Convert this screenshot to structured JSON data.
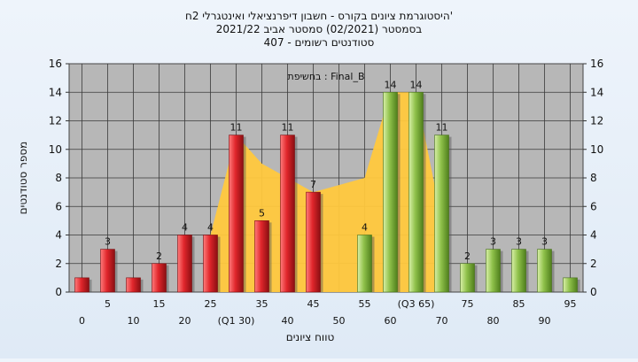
{
  "chart_data": {
    "type": "bar",
    "title_lines": [
      "היסטוגרמת ציונים בקורס - חשבון דיפרנציאלי ואינטגרלי 2ח'",
      "בסמסטר (02/2021) סמסטר אביב 2021/22",
      "סטודנטים רשומים - 407"
    ],
    "annotation": "בחשיפת : Final_B",
    "xlabel": "טווח ציונים",
    "ylabel": "מספר סטודנטים",
    "ylim": [
      0,
      16
    ],
    "y_ticks": [
      0,
      2,
      4,
      6,
      8,
      10,
      12,
      14,
      16
    ],
    "grid": true,
    "x": [
      0,
      5,
      10,
      15,
      20,
      25,
      30,
      35,
      40,
      45,
      50,
      55,
      60,
      65,
      70,
      75,
      80,
      85,
      90,
      95
    ],
    "values": [
      1,
      3,
      1,
      2,
      4,
      4,
      11,
      5,
      11,
      7,
      0,
      4,
      14,
      14,
      11,
      2,
      3,
      3,
      3,
      1
    ],
    "bar_colors": [
      "red",
      "red",
      "red",
      "red",
      "red",
      "red",
      "red",
      "red",
      "red",
      "red",
      "green",
      "green",
      "green",
      "green",
      "green",
      "green",
      "green",
      "green",
      "green",
      "green"
    ],
    "value_labels": [
      "",
      "3",
      "",
      "2",
      "4",
      "4",
      "11",
      "5",
      "11",
      "7",
      "",
      "4",
      "14",
      "14",
      "11",
      "2",
      "3",
      "3",
      "3",
      ""
    ],
    "tick_labels_row1": [
      {
        "x": 5,
        "text": "5"
      },
      {
        "x": 15,
        "text": "15"
      },
      {
        "x": 25,
        "text": "25"
      },
      {
        "x": 35,
        "text": "35"
      },
      {
        "x": 45,
        "text": "45"
      },
      {
        "x": 55,
        "text": "55"
      },
      {
        "x": 65,
        "text": "(Q3 65)"
      },
      {
        "x": 75,
        "text": "75"
      },
      {
        "x": 85,
        "text": "85"
      },
      {
        "x": 95,
        "text": "95"
      }
    ],
    "tick_labels_row2": [
      {
        "x": 0,
        "text": "0"
      },
      {
        "x": 10,
        "text": "10"
      },
      {
        "x": 20,
        "text": "20"
      },
      {
        "x": 30,
        "text": "(Q1 30)"
      },
      {
        "x": 40,
        "text": "40"
      },
      {
        "x": 50,
        "text": "50"
      },
      {
        "x": 60,
        "text": "60"
      },
      {
        "x": 70,
        "text": "70"
      },
      {
        "x": 80,
        "text": "80"
      },
      {
        "x": 90,
        "text": "90"
      }
    ],
    "area_series": {
      "x": [
        25,
        30,
        35,
        40,
        45,
        50,
        55,
        60,
        65,
        70
      ],
      "y": [
        4,
        11,
        9,
        8,
        7,
        7.5,
        8,
        14,
        14,
        5
      ]
    },
    "colors": {
      "plot_bg": "#b7b7b7",
      "area": "#ffc83d",
      "red_bar": "#e0262b",
      "green_bar": "#8fc14a",
      "grid": "#3a3a3a"
    }
  }
}
